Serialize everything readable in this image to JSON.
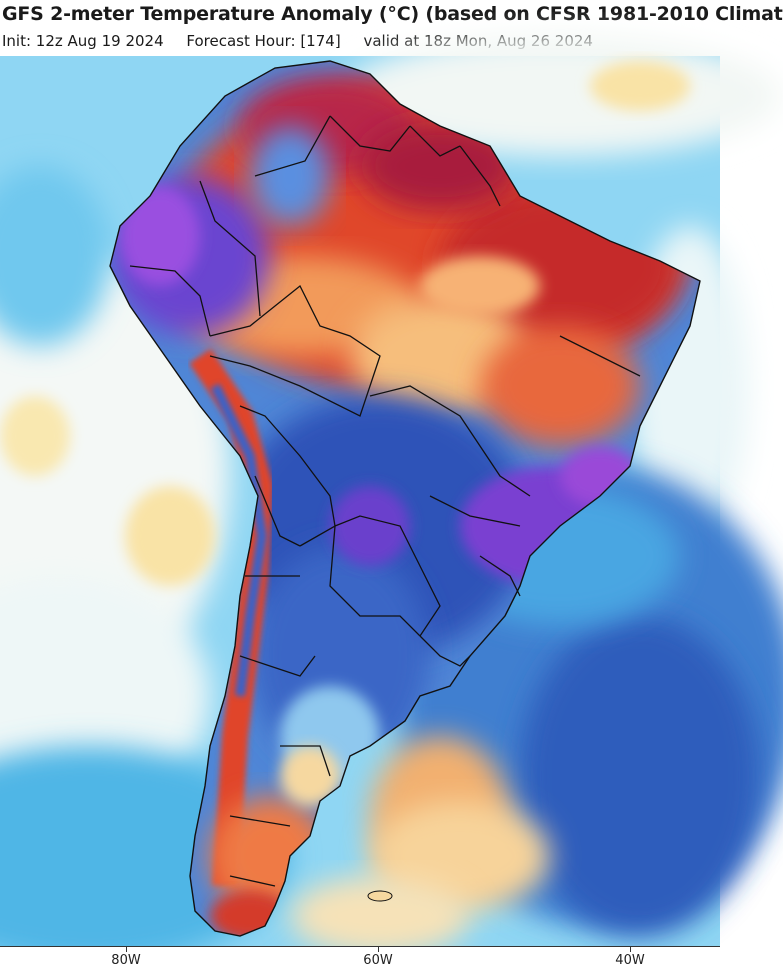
{
  "header": {
    "title": "GFS 2-meter Temperature Anomaly (°C) (based on CFSR 1981-2010 Climat",
    "init": "Init: 12z Aug 19 2024",
    "forecast_hour": "Forecast Hour: [174]",
    "valid": "valid at 18z Mon, Aug 26 2024"
  },
  "axis": {
    "ticks": [
      {
        "label": "80W",
        "lon": -80
      },
      {
        "label": "60W",
        "lon": -60
      },
      {
        "label": "40W",
        "lon": -40
      }
    ]
  },
  "colors": {
    "ocean_base": "#5fc3ea",
    "near_zero": "#f7f7f2",
    "warm_light": "#f9dc9b",
    "warm_mid": "#f08a4b",
    "warm_strong": "#d93a2b",
    "warm_extreme": "#b21f4e",
    "cool_light": "#9fd8f4",
    "cool_mid": "#4f86d6",
    "cool_strong": "#2f52b8",
    "cool_extreme": "#7a3fd1",
    "border": "#111111"
  }
}
